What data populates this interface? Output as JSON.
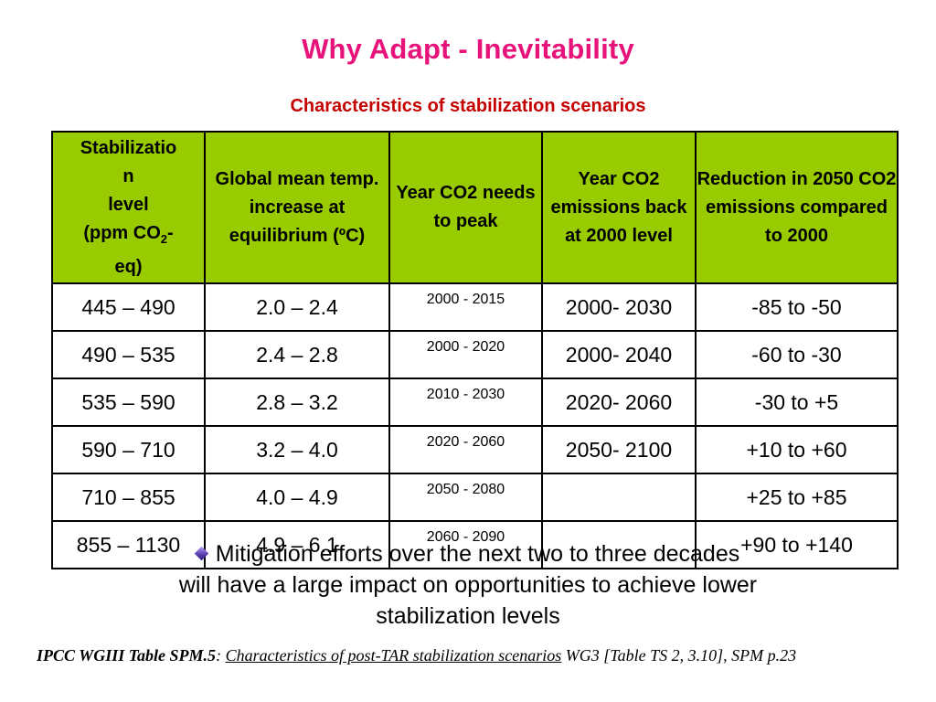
{
  "title": "Why Adapt - Inevitability",
  "subtitle": "Characteristics of stabilization scenarios",
  "table": {
    "headers": {
      "col1_line1": "Stabilizatio",
      "col1_line2": "n",
      "col1_line3": "level",
      "col1_line4_pre": "(ppm CO",
      "col1_line4_sub": "2",
      "col1_line4_post": "-",
      "col1_line5": "eq)",
      "col2": "Global mean temp. increase at equilibrium (ºC)",
      "col3": "Year CO2 needs to peak",
      "col4": "Year CO2 emissions back at 2000 level",
      "col5": "Reduction in 2050 CO2 emissions compared to 2000"
    },
    "rows": [
      {
        "level": "445 – 490",
        "temp": "2.0 – 2.4",
        "peak": "2000 - 2015",
        "back": "2000- 2030",
        "reduction": "-85 to -50"
      },
      {
        "level": "490 – 535",
        "temp": "2.4 – 2.8",
        "peak": "2000 - 2020",
        "back": "2000- 2040",
        "reduction": "-60 to -30"
      },
      {
        "level": "535 – 590",
        "temp": "2.8 – 3.2",
        "peak": "2010 - 2030",
        "back": "2020- 2060",
        "reduction": "-30 to +5"
      },
      {
        "level": "590 – 710",
        "temp": "3.2 – 4.0",
        "peak": "2020 - 2060",
        "back": "2050- 2100",
        "reduction": "+10 to +60"
      },
      {
        "level": "710 – 855",
        "temp": "4.0 – 4.9",
        "peak": "2050 - 2080",
        "back": "",
        "reduction": "+25 to +85"
      },
      {
        "level": "855 – 1130",
        "temp": "4.9 – 6.1",
        "peak": "2060 - 2090",
        "back": "",
        "reduction": "+90 to +140"
      }
    ]
  },
  "bullet": {
    "line1": "Mitigation efforts over the next two to three decades",
    "line2": "will have a large impact on opportunities to achieve lower",
    "line3": "stabilization levels"
  },
  "source": {
    "bold": "IPCC WGIII Table SPM.5",
    "colon": ": ",
    "link": "Characteristics of post-TAR stabilization scenarios",
    "rest": " WG3 [Table TS 2, 3.10], SPM p.23"
  },
  "colors": {
    "title": "#e8137a",
    "subtitle": "#c40000",
    "header_bg": "#99cc00"
  },
  "icons": {
    "bullet": "diamond-bullet-icon"
  }
}
